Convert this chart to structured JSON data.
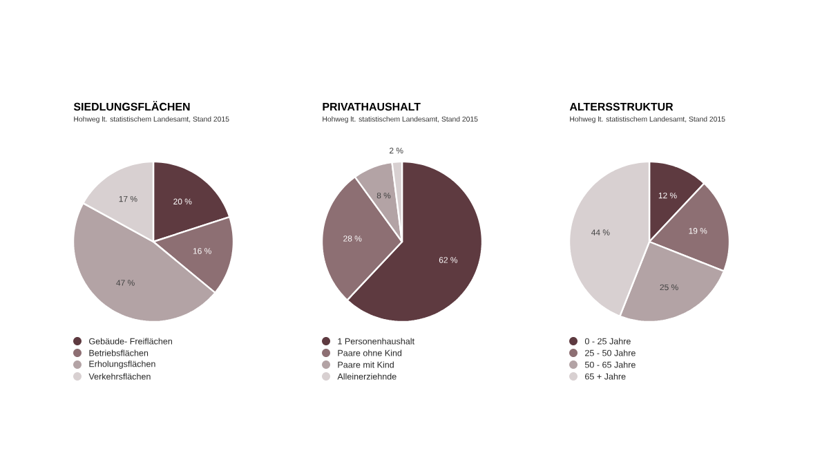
{
  "chart_data": [
    {
      "type": "pie",
      "title": "SIEDLUNGSFLÄCHEN",
      "subtitle": "Hohweg lt. statistischem Landesamt, Stand 2015",
      "categories": [
        "Gebäude- Freiflächen",
        "Betriebsflächen",
        "Erholungsflächen",
        "Verkehrsflächen"
      ],
      "values": [
        20,
        16,
        47,
        17
      ],
      "value_labels": [
        "20 %",
        "16 %",
        "47 %",
        "17 %"
      ],
      "colors": [
        "#5e3a40",
        "#8d6f73",
        "#b3a3a5",
        "#d8d0d1"
      ],
      "legend": "bottom"
    },
    {
      "type": "pie",
      "title": "PRIVATHAUSHALT",
      "subtitle": "Hohweg lt. statistischem Landesamt, Stand 2015",
      "categories": [
        "1 Personenhaushalt",
        "Paare ohne Kind",
        "Paare mit Kind",
        "Alleinerziehnde"
      ],
      "values": [
        62,
        28,
        8,
        2
      ],
      "value_labels": [
        "62 %",
        "28 %",
        "8 %",
        "2 %"
      ],
      "colors": [
        "#5e3a40",
        "#8d6f73",
        "#b3a3a5",
        "#d8d0d1"
      ],
      "legend": "bottom"
    },
    {
      "type": "pie",
      "title": "ALTERSSTRUKTUR",
      "subtitle": "Hohweg lt. statistischem Landesamt, Stand 2015",
      "categories": [
        "0 - 25 Jahre",
        "25 - 50 Jahre",
        "50 - 65 Jahre",
        "65 + Jahre"
      ],
      "values": [
        12,
        19,
        25,
        44
      ],
      "value_labels": [
        "12 %",
        "19 %",
        "25 %",
        "44 %"
      ],
      "colors": [
        "#5e3a40",
        "#8d6f73",
        "#b3a3a5",
        "#d8d0d1"
      ],
      "legend": "bottom"
    }
  ]
}
